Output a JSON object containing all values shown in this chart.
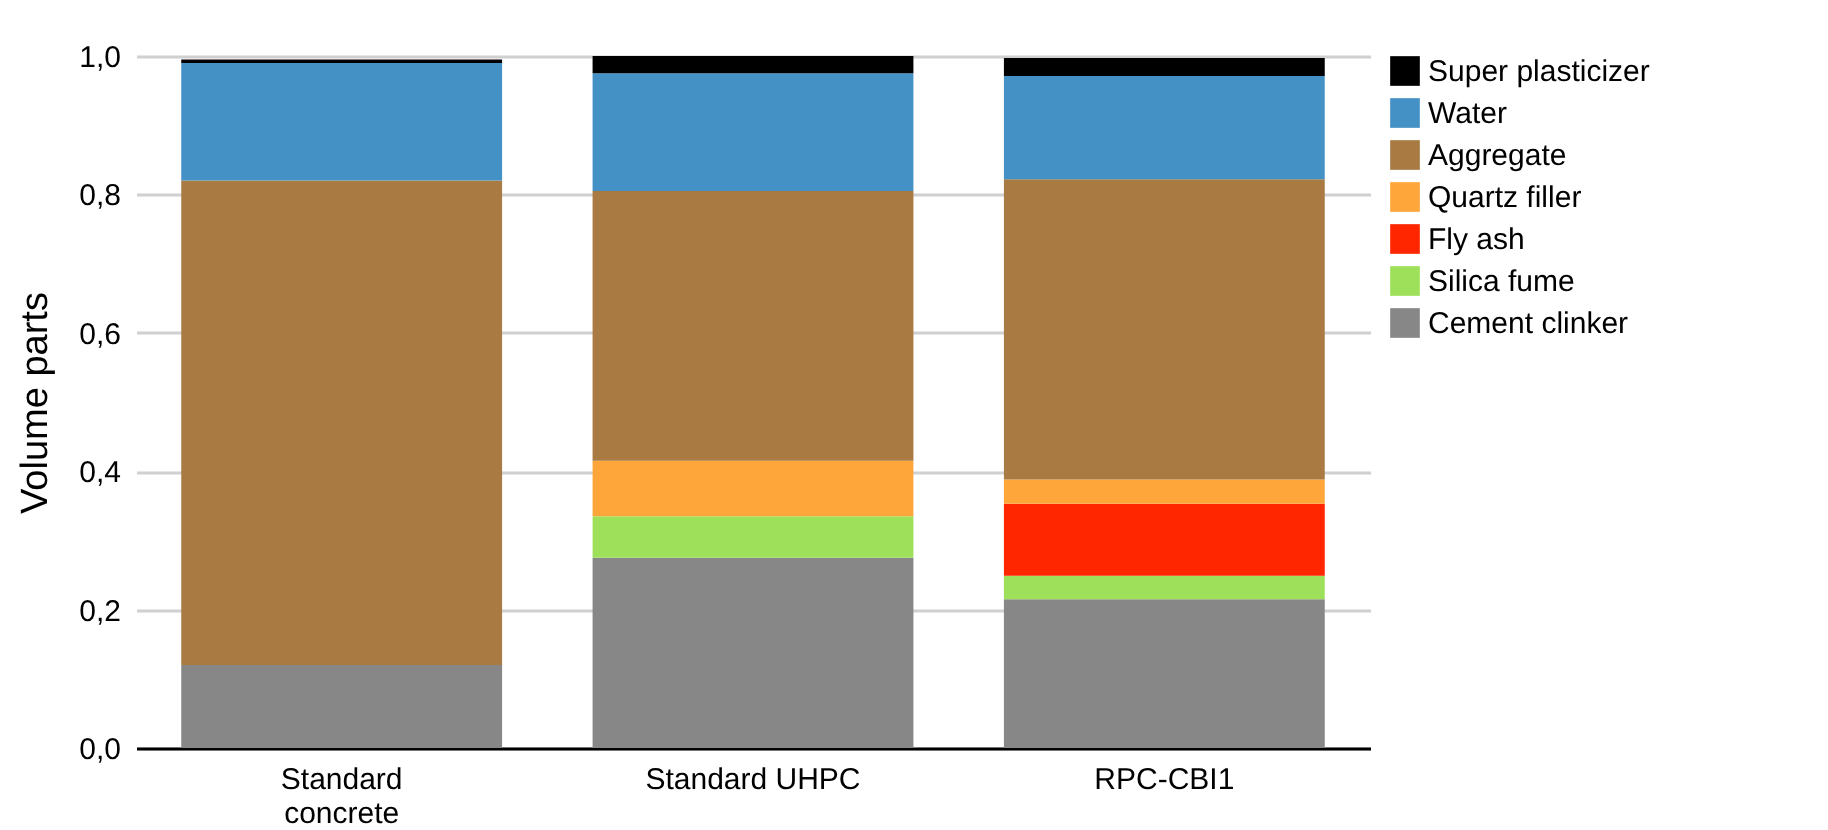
{
  "chart_data": {
    "type": "bar",
    "stacked": true,
    "ylabel": "Volume parts",
    "categories": [
      "Standard concrete",
      "Standard UHPC",
      "RPC-CBI1"
    ],
    "series": [
      {
        "name": "Cement clinker",
        "color": "#878787",
        "values": [
          0.12,
          0.275,
          0.215
        ]
      },
      {
        "name": "Silica fume",
        "color": "#9fe05a",
        "values": [
          null,
          0.06,
          0.034
        ]
      },
      {
        "name": "Fly ash",
        "color": "#ff2600",
        "values": [
          null,
          null,
          0.104
        ]
      },
      {
        "name": "Quartz filler",
        "color": "#ffa63a",
        "values": [
          null,
          0.08,
          0.035
        ]
      },
      {
        "name": "Aggregate",
        "color": "#a97a42",
        "values": [
          0.7,
          0.39,
          0.434
        ]
      },
      {
        "name": "Water",
        "color": "#4491c6",
        "values": [
          0.17,
          0.17,
          0.149
        ]
      },
      {
        "name": "Super plasticizer",
        "color": "#000000",
        "values": [
          0.005,
          0.025,
          0.026
        ]
      }
    ],
    "ylim": [
      0,
      1
    ],
    "yticks": [
      {
        "value": 0,
        "label": "0,0"
      },
      {
        "value": 0.2,
        "label": "0,2"
      },
      {
        "value": 0.4,
        "label": "0,4"
      },
      {
        "value": 0.6,
        "label": "0,6"
      },
      {
        "value": 0.8,
        "label": "0,8"
      },
      {
        "value": 1,
        "label": "1,0"
      }
    ],
    "grid": "y",
    "legend": "top right"
  }
}
